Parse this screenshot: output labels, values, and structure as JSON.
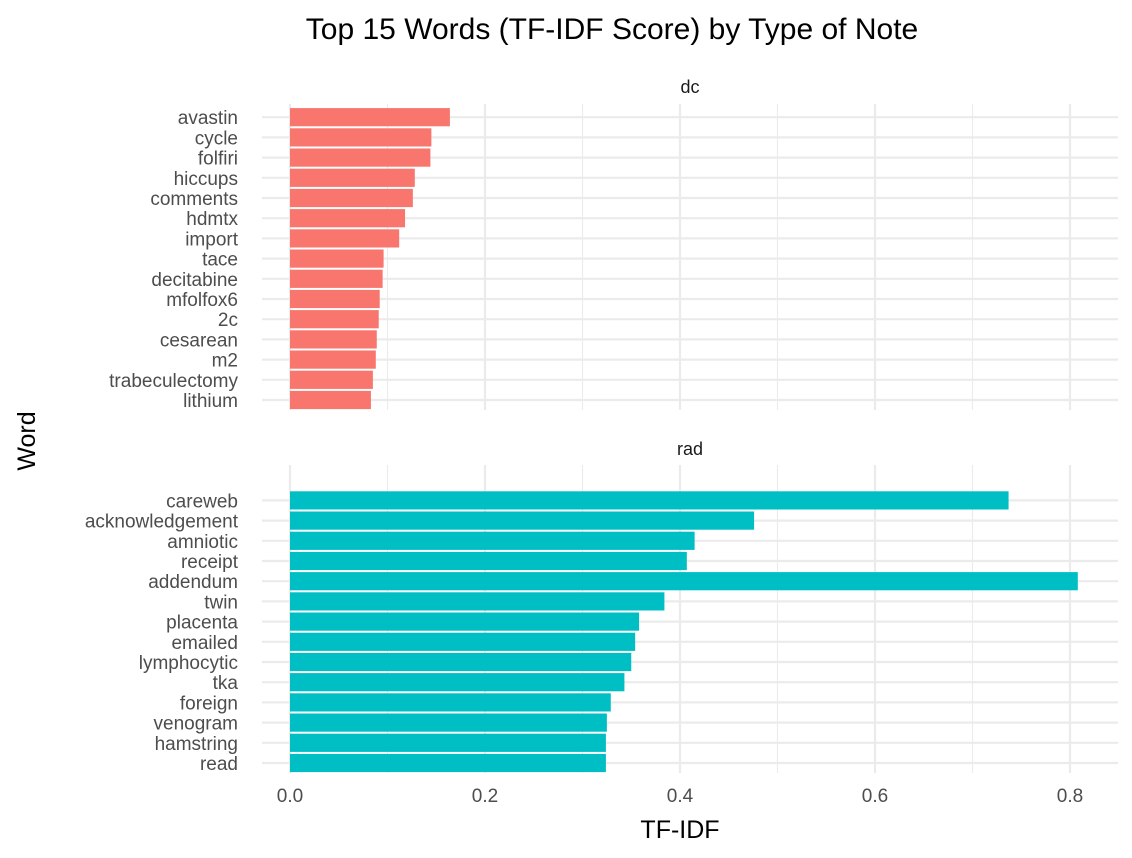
{
  "chart_data": {
    "type": "bar",
    "orientation": "horizontal",
    "title": "Top 15 Words (TF-IDF Score) by Type of Note",
    "xlabel": "TF-IDF",
    "ylabel": "Word",
    "xlim": [
      0,
      0.84
    ],
    "xticks": [
      0.0,
      0.2,
      0.4,
      0.6,
      0.8
    ],
    "xtick_labels": [
      "0.0",
      "0.2",
      "0.4",
      "0.6",
      "0.8"
    ],
    "grid": true,
    "legend": "none",
    "facets": [
      {
        "name": "dc",
        "color": "#F8766D",
        "categories": [
          "avastin",
          "cycle",
          "folfiri",
          "hiccups",
          "comments",
          "hdmtx",
          "import",
          "tace",
          "decitabine",
          "mfolfox6",
          "2c",
          "cesarean",
          "m2",
          "trabeculectomy",
          "lithium"
        ],
        "values": [
          0.164,
          0.145,
          0.144,
          0.128,
          0.126,
          0.118,
          0.112,
          0.096,
          0.095,
          0.092,
          0.091,
          0.089,
          0.088,
          0.085,
          0.083
        ]
      },
      {
        "name": "rad",
        "color": "#00BFC4",
        "categories": [
          "careweb",
          "acknowledgement",
          "amniotic",
          "receipt",
          "addendum",
          "twin",
          "placenta",
          "emailed",
          "lymphocytic",
          "tka",
          "foreign",
          "venogram",
          "hamstring",
          "read"
        ],
        "values": [
          0.737,
          0.476,
          0.415,
          0.407,
          0.808,
          0.384,
          0.358,
          0.354,
          0.35,
          0.343,
          0.329,
          0.325,
          0.324,
          0.324
        ]
      }
    ]
  }
}
